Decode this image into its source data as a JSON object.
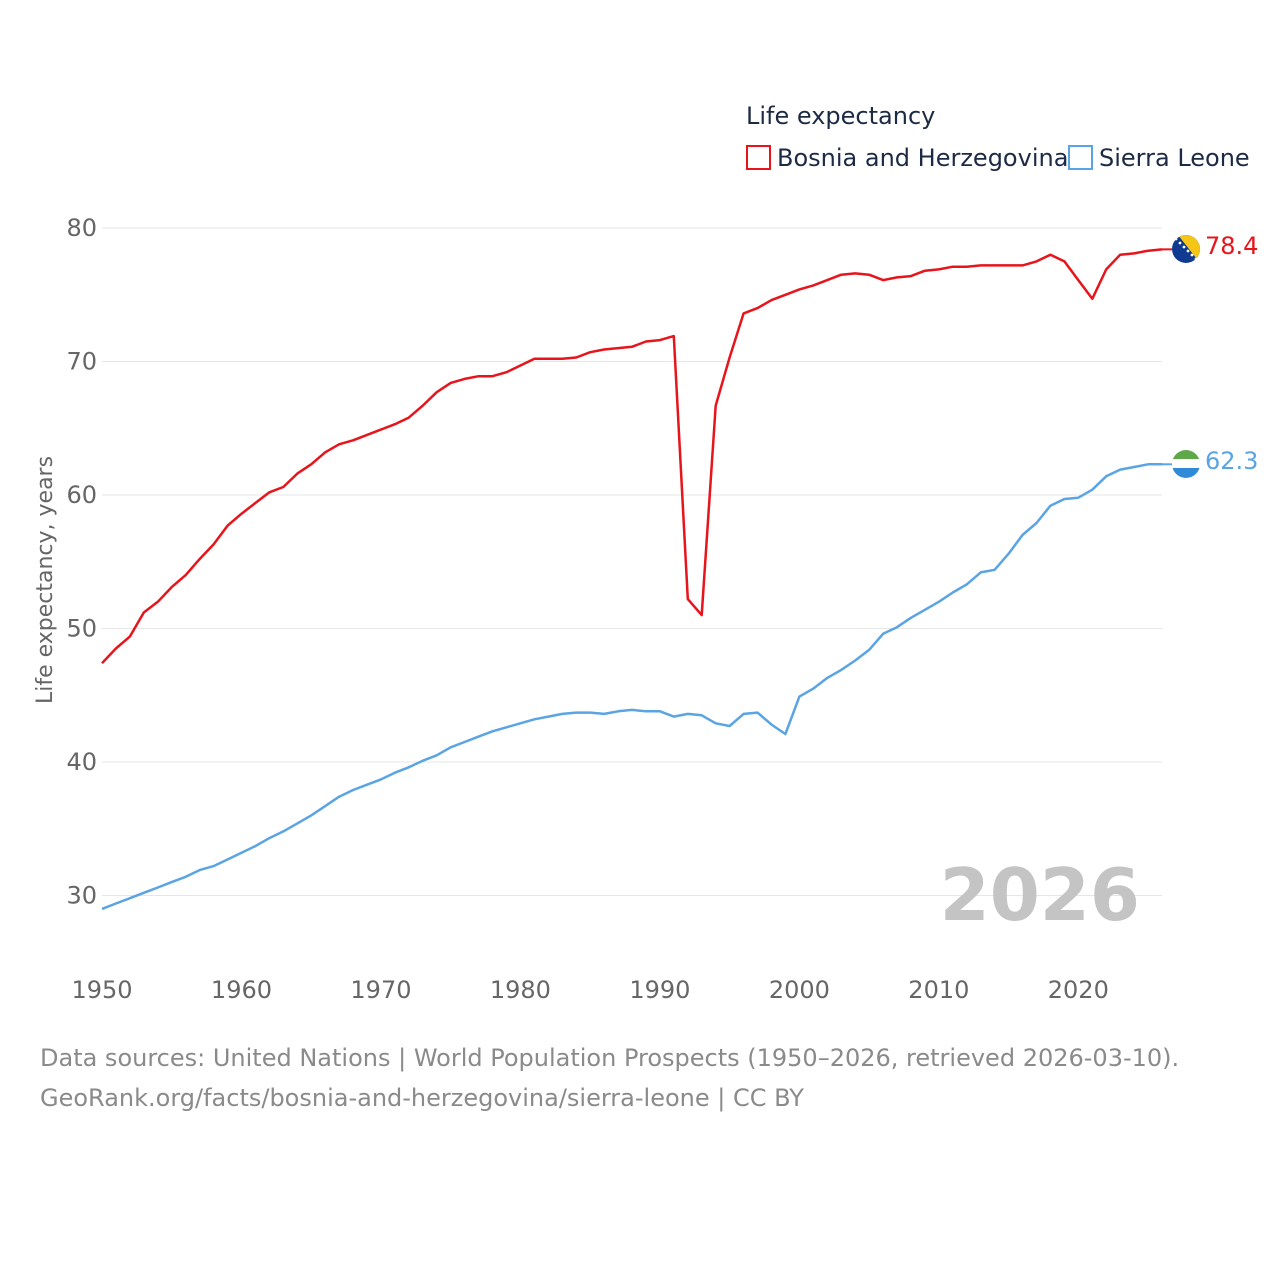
{
  "chart_data": {
    "type": "line",
    "legend_title": "Life expectancy",
    "ylabel": "Life expectancy, years",
    "xlabel": "",
    "ylim": [
      25,
      82
    ],
    "xlim": [
      1950,
      2026
    ],
    "yticks": [
      30,
      40,
      50,
      60,
      70,
      80
    ],
    "xticks": [
      1950,
      1960,
      1970,
      1980,
      1990,
      2000,
      2010,
      2020
    ],
    "grid": true,
    "legend_position": "top-right",
    "year_label": "2026",
    "series": [
      {
        "name": "Bosnia and Herzegovina",
        "color": "#e8141b",
        "end_label": "78.4",
        "flag": "bosnia-flag-icon",
        "x": [
          1950,
          1951,
          1952,
          1953,
          1954,
          1955,
          1956,
          1957,
          1958,
          1959,
          1960,
          1961,
          1962,
          1963,
          1964,
          1965,
          1966,
          1967,
          1968,
          1969,
          1970,
          1971,
          1972,
          1973,
          1974,
          1975,
          1976,
          1977,
          1978,
          1979,
          1980,
          1981,
          1982,
          1983,
          1984,
          1985,
          1986,
          1987,
          1988,
          1989,
          1990,
          1991,
          1992,
          1993,
          1994,
          1995,
          1996,
          1997,
          1998,
          1999,
          2000,
          2001,
          2002,
          2003,
          2004,
          2005,
          2006,
          2007,
          2008,
          2009,
          2010,
          2011,
          2012,
          2013,
          2014,
          2015,
          2016,
          2017,
          2018,
          2019,
          2020,
          2021,
          2022,
          2023,
          2024,
          2025,
          2026
        ],
        "values": [
          47.4,
          48.5,
          49.4,
          51.2,
          52.0,
          53.1,
          54.0,
          55.2,
          56.3,
          57.7,
          58.6,
          59.4,
          60.2,
          60.6,
          61.6,
          62.3,
          63.2,
          63.8,
          64.1,
          64.5,
          64.9,
          65.3,
          65.8,
          66.7,
          67.7,
          68.4,
          68.7,
          68.9,
          68.9,
          69.2,
          69.7,
          70.2,
          70.2,
          70.2,
          70.3,
          70.7,
          70.9,
          71.0,
          71.1,
          71.5,
          71.6,
          71.9,
          52.2,
          51.0,
          66.7,
          70.3,
          73.6,
          74.0,
          74.6,
          75.0,
          75.4,
          75.7,
          76.1,
          76.5,
          76.6,
          76.5,
          76.1,
          76.3,
          76.4,
          76.8,
          76.9,
          77.1,
          77.1,
          77.2,
          77.2,
          77.2,
          77.2,
          77.5,
          78.0,
          77.5,
          76.1,
          74.7,
          76.9,
          78.0,
          78.1,
          78.3,
          78.4
        ]
      },
      {
        "name": "Sierra Leone",
        "color": "#5ba4e4",
        "end_label": "62.3",
        "flag": "sierra-leone-flag-icon",
        "x": [
          1950,
          1951,
          1952,
          1953,
          1954,
          1955,
          1956,
          1957,
          1958,
          1959,
          1960,
          1961,
          1962,
          1963,
          1964,
          1965,
          1966,
          1967,
          1968,
          1969,
          1970,
          1971,
          1972,
          1973,
          1974,
          1975,
          1976,
          1977,
          1978,
          1979,
          1980,
          1981,
          1982,
          1983,
          1984,
          1985,
          1986,
          1987,
          1988,
          1989,
          1990,
          1991,
          1992,
          1993,
          1994,
          1995,
          1996,
          1997,
          1998,
          1999,
          2000,
          2001,
          2002,
          2003,
          2004,
          2005,
          2006,
          2007,
          2008,
          2009,
          2010,
          2011,
          2012,
          2013,
          2014,
          2015,
          2016,
          2017,
          2018,
          2019,
          2020,
          2021,
          2022,
          2023,
          2024,
          2025,
          2026
        ],
        "values": [
          29.0,
          29.4,
          29.8,
          30.2,
          30.6,
          31.0,
          31.4,
          31.9,
          32.2,
          32.7,
          33.2,
          33.7,
          34.3,
          34.8,
          35.4,
          36.0,
          36.7,
          37.4,
          37.9,
          38.3,
          38.7,
          39.2,
          39.6,
          40.1,
          40.5,
          41.1,
          41.5,
          41.9,
          42.3,
          42.6,
          42.9,
          43.2,
          43.4,
          43.6,
          43.7,
          43.7,
          43.6,
          43.8,
          43.9,
          43.8,
          43.8,
          43.4,
          43.6,
          43.5,
          42.9,
          42.7,
          43.6,
          43.7,
          42.8,
          42.1,
          44.9,
          45.5,
          46.3,
          46.9,
          47.6,
          48.4,
          49.6,
          50.1,
          50.8,
          51.4,
          52.0,
          52.7,
          53.3,
          54.2,
          54.4,
          55.6,
          57.0,
          57.9,
          59.2,
          59.7,
          59.8,
          60.4,
          61.4,
          61.9,
          62.1,
          62.3,
          62.3
        ]
      }
    ]
  },
  "footer": {
    "sources": "Data sources: United Nations | World Population Prospects (1950–2026, retrieved 2026-03-10).",
    "credit": "GeoRank.org/facts/bosnia-and-herzegovina/sierra-leone | CC BY"
  }
}
